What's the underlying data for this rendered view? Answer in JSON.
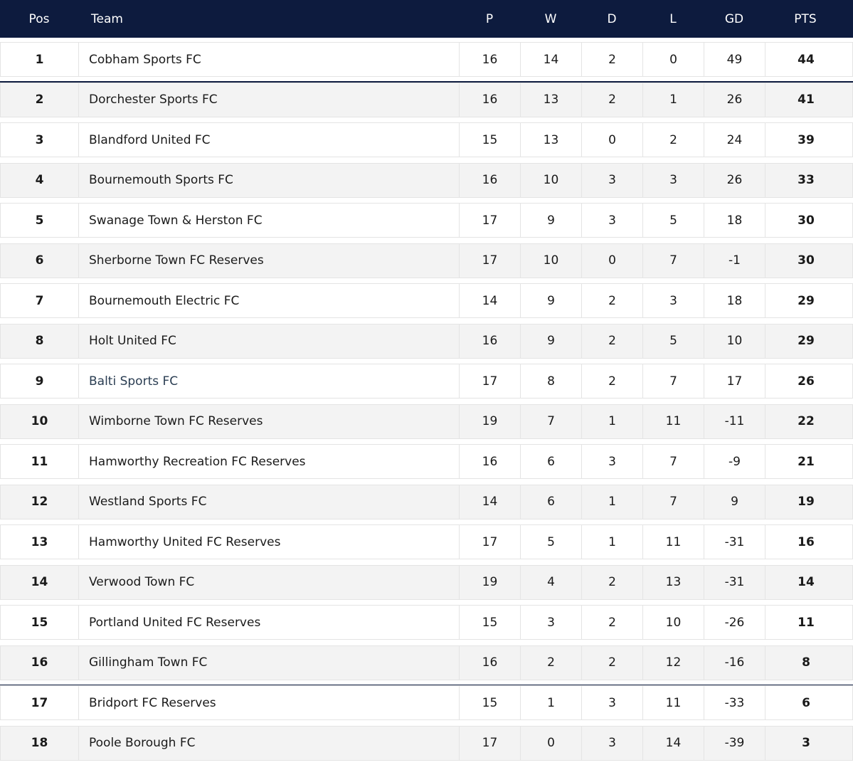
{
  "header": {
    "pos": "Pos",
    "team": "Team",
    "p": "P",
    "w": "W",
    "d": "D",
    "l": "L",
    "gd": "GD",
    "pts": "PTS"
  },
  "rows": [
    {
      "pos": "1",
      "team": "Cobham Sports FC",
      "p": "16",
      "w": "14",
      "d": "2",
      "l": "0",
      "gd": "49",
      "pts": "44"
    },
    {
      "pos": "2",
      "team": "Dorchester Sports FC",
      "p": "16",
      "w": "13",
      "d": "2",
      "l": "1",
      "gd": "26",
      "pts": "41"
    },
    {
      "pos": "3",
      "team": "Blandford United FC",
      "p": "15",
      "w": "13",
      "d": "0",
      "l": "2",
      "gd": "24",
      "pts": "39"
    },
    {
      "pos": "4",
      "team": "Bournemouth Sports FC",
      "p": "16",
      "w": "10",
      "d": "3",
      "l": "3",
      "gd": "26",
      "pts": "33"
    },
    {
      "pos": "5",
      "team": "Swanage Town & Herston FC",
      "p": "17",
      "w": "9",
      "d": "3",
      "l": "5",
      "gd": "18",
      "pts": "30"
    },
    {
      "pos": "6",
      "team": "Sherborne Town FC Reserves",
      "p": "17",
      "w": "10",
      "d": "0",
      "l": "7",
      "gd": "-1",
      "pts": "30"
    },
    {
      "pos": "7",
      "team": "Bournemouth Electric FC",
      "p": "14",
      "w": "9",
      "d": "2",
      "l": "3",
      "gd": "18",
      "pts": "29"
    },
    {
      "pos": "8",
      "team": "Holt United FC",
      "p": "16",
      "w": "9",
      "d": "2",
      "l": "5",
      "gd": "10",
      "pts": "29"
    },
    {
      "pos": "9",
      "team": "Balti Sports FC",
      "p": "17",
      "w": "8",
      "d": "2",
      "l": "7",
      "gd": "17",
      "pts": "26"
    },
    {
      "pos": "10",
      "team": "Wimborne Town FC Reserves",
      "p": "19",
      "w": "7",
      "d": "1",
      "l": "11",
      "gd": "-11",
      "pts": "22"
    },
    {
      "pos": "11",
      "team": "Hamworthy Recreation FC Reserves",
      "p": "16",
      "w": "6",
      "d": "3",
      "l": "7",
      "gd": "-9",
      "pts": "21"
    },
    {
      "pos": "12",
      "team": "Westland Sports FC",
      "p": "14",
      "w": "6",
      "d": "1",
      "l": "7",
      "gd": "9",
      "pts": "19"
    },
    {
      "pos": "13",
      "team": "Hamworthy United FC Reserves",
      "p": "17",
      "w": "5",
      "d": "1",
      "l": "11",
      "gd": "-31",
      "pts": "16"
    },
    {
      "pos": "14",
      "team": "Verwood Town FC",
      "p": "19",
      "w": "4",
      "d": "2",
      "l": "13",
      "gd": "-31",
      "pts": "14"
    },
    {
      "pos": "15",
      "team": "Portland United FC Reserves",
      "p": "15",
      "w": "3",
      "d": "2",
      "l": "10",
      "gd": "-26",
      "pts": "11"
    },
    {
      "pos": "16",
      "team": "Gillingham Town FC",
      "p": "16",
      "w": "2",
      "d": "2",
      "l": "12",
      "gd": "-16",
      "pts": "8"
    },
    {
      "pos": "17",
      "team": "Bridport FC Reserves",
      "p": "15",
      "w": "1",
      "d": "3",
      "l": "11",
      "gd": "-33",
      "pts": "6"
    },
    {
      "pos": "18",
      "team": "Poole Borough FC",
      "p": "17",
      "w": "0",
      "d": "3",
      "l": "14",
      "gd": "-39",
      "pts": "3"
    }
  ],
  "colors": {
    "header_bg": "#0d1b3e",
    "row_alt_bg": "#f3f3f3",
    "highlight_team": "#2a3d52"
  }
}
